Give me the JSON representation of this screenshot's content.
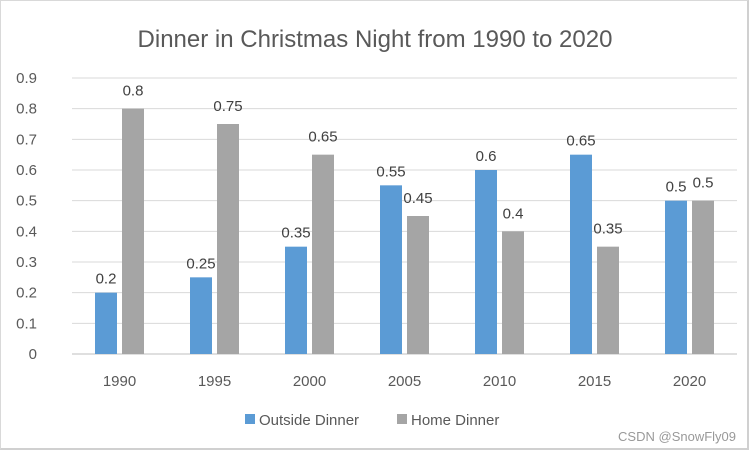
{
  "chart_data": {
    "type": "bar",
    "title": "Dinner in Christmas Night from 1990 to 2020",
    "xlabel": "",
    "ylabel": "",
    "categories": [
      "1990",
      "1995",
      "2000",
      "2005",
      "2010",
      "2015",
      "2020"
    ],
    "series": [
      {
        "name": "Outside Dinner",
        "color": "#5B9BD5",
        "values": [
          0.2,
          0.25,
          0.35,
          0.55,
          0.6,
          0.65,
          0.5
        ]
      },
      {
        "name": "Home Dinner",
        "color": "#A5A5A5",
        "values": [
          0.8,
          0.75,
          0.65,
          0.45,
          0.4,
          0.35,
          0.5
        ]
      }
    ],
    "ylim": [
      0,
      0.9
    ],
    "yticks": [
      "0",
      "0.1",
      "0.2",
      "0.3",
      "0.4",
      "0.5",
      "0.6",
      "0.7",
      "0.8",
      "0.9"
    ],
    "grid": true,
    "legend": "bottom",
    "data_labels": true
  },
  "watermark": "CSDN @SnowFly09"
}
